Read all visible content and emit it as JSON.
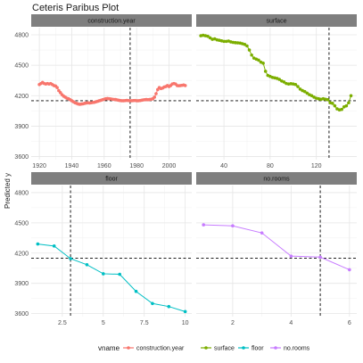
{
  "chart_data": {
    "type": "line",
    "title": "Ceteris Paribus Plot",
    "ylabel": "Predicted y",
    "reference_y": 4150,
    "legend": {
      "title": "vname",
      "position": "bottom",
      "entries": [
        "construction.year",
        "surface",
        "floor",
        "no.rooms"
      ]
    },
    "panels": [
      {
        "name": "construction.year",
        "color": "#F8766D",
        "xlim": [
          1915,
          2014
        ],
        "ylim": [
          3570,
          4870
        ],
        "xticks": [
          1920,
          1940,
          1960,
          1980,
          2000
        ],
        "yticks": [
          3600,
          3900,
          4200,
          4500,
          4800
        ],
        "vline": 1976,
        "points": {
          "x": [
            1920,
            1921,
            1922,
            1923,
            1924,
            1925,
            1926,
            1927,
            1928,
            1929,
            1930,
            1931,
            1932,
            1933,
            1934,
            1935,
            1936,
            1937,
            1938,
            1939,
            1940,
            1941,
            1942,
            1943,
            1944,
            1945,
            1946,
            1947,
            1948,
            1949,
            1950,
            1951,
            1952,
            1953,
            1954,
            1955,
            1956,
            1957,
            1958,
            1959,
            1960,
            1961,
            1962,
            1963,
            1964,
            1965,
            1966,
            1967,
            1968,
            1969,
            1970,
            1971,
            1972,
            1973,
            1974,
            1975,
            1976,
            1977,
            1978,
            1979,
            1980,
            1981,
            1982,
            1983,
            1984,
            1985,
            1986,
            1987,
            1988,
            1989,
            1990,
            1991,
            1992,
            1993,
            1994,
            1995,
            1996,
            1997,
            1998,
            1999,
            2000,
            2001,
            2002,
            2003,
            2004,
            2005,
            2006,
            2007,
            2008,
            2009,
            2010
          ],
          "y": [
            4310,
            4320,
            4330,
            4320,
            4315,
            4320,
            4315,
            4320,
            4310,
            4300,
            4295,
            4280,
            4250,
            4230,
            4210,
            4195,
            4185,
            4175,
            4170,
            4160,
            4150,
            4140,
            4130,
            4125,
            4118,
            4115,
            4118,
            4120,
            4125,
            4128,
            4130,
            4128,
            4130,
            4133,
            4135,
            4140,
            4145,
            4150,
            4155,
            4160,
            4165,
            4170,
            4172,
            4170,
            4168,
            4165,
            4163,
            4162,
            4158,
            4155,
            4152,
            4150,
            4150,
            4152,
            4154,
            4152,
            4150,
            4150,
            4152,
            4153,
            4150,
            4150,
            4152,
            4155,
            4158,
            4160,
            4162,
            4160,
            4162,
            4165,
            4170,
            4185,
            4220,
            4260,
            4280,
            4270,
            4275,
            4285,
            4290,
            4300,
            4290,
            4300,
            4315,
            4320,
            4315,
            4300,
            4298,
            4300,
            4302,
            4305,
            4300
          ]
        }
      },
      {
        "name": "surface",
        "color": "#7CAE00",
        "xlim": [
          16,
          155
        ],
        "ylim": [
          3570,
          4870
        ],
        "xticks": [
          40,
          80,
          120
        ],
        "yticks": [
          3600,
          3900,
          4200,
          4500,
          4800
        ],
        "vline": 131,
        "points": {
          "x": [
            20,
            22,
            24,
            26,
            28,
            30,
            32,
            34,
            36,
            38,
            40,
            42,
            44,
            46,
            48,
            50,
            52,
            54,
            56,
            58,
            60,
            62,
            64,
            66,
            68,
            70,
            72,
            74,
            76,
            78,
            80,
            82,
            84,
            86,
            88,
            90,
            92,
            94,
            96,
            98,
            100,
            102,
            104,
            106,
            108,
            110,
            112,
            114,
            116,
            118,
            120,
            122,
            124,
            126,
            128,
            130,
            132,
            134,
            136,
            138,
            140,
            142,
            144,
            146,
            148,
            150
          ],
          "y": [
            4790,
            4795,
            4790,
            4785,
            4770,
            4755,
            4760,
            4750,
            4745,
            4740,
            4735,
            4735,
            4738,
            4730,
            4725,
            4722,
            4720,
            4718,
            4712,
            4705,
            4690,
            4650,
            4600,
            4570,
            4560,
            4550,
            4530,
            4520,
            4440,
            4400,
            4390,
            4380,
            4375,
            4370,
            4360,
            4345,
            4335,
            4320,
            4315,
            4318,
            4315,
            4310,
            4290,
            4265,
            4250,
            4240,
            4225,
            4210,
            4200,
            4185,
            4175,
            4170,
            4165,
            4170,
            4165,
            4160,
            4130,
            4125,
            4100,
            4070,
            4060,
            4065,
            4090,
            4100,
            4130,
            4200
          ]
        }
      },
      {
        "name": "floor",
        "color": "#00BFC4",
        "xlim": [
          0.6,
          10.4
        ],
        "ylim": [
          3570,
          4870
        ],
        "xticks": [
          2.5,
          5.0,
          7.5,
          10.0
        ],
        "yticks": [
          3600,
          3900,
          4200,
          4500,
          4800
        ],
        "vline": 3,
        "points": {
          "x": [
            1,
            2,
            3,
            4,
            5,
            6,
            7,
            8,
            9,
            10
          ],
          "y": [
            4290,
            4270,
            4145,
            4085,
            3995,
            3990,
            3820,
            3700,
            3670,
            3620
          ]
        }
      },
      {
        "name": "no.rooms",
        "color": "#C77CFF",
        "xlim": [
          0.75,
          6.25
        ],
        "ylim": [
          3570,
          4870
        ],
        "xticks": [
          2,
          4,
          6
        ],
        "yticks": [
          3600,
          3900,
          4200,
          4500,
          4800
        ],
        "vline": 5,
        "points": {
          "x": [
            1,
            2,
            3,
            4,
            5,
            6
          ],
          "y": [
            4480,
            4470,
            4400,
            4170,
            4160,
            4035
          ]
        }
      }
    ]
  }
}
